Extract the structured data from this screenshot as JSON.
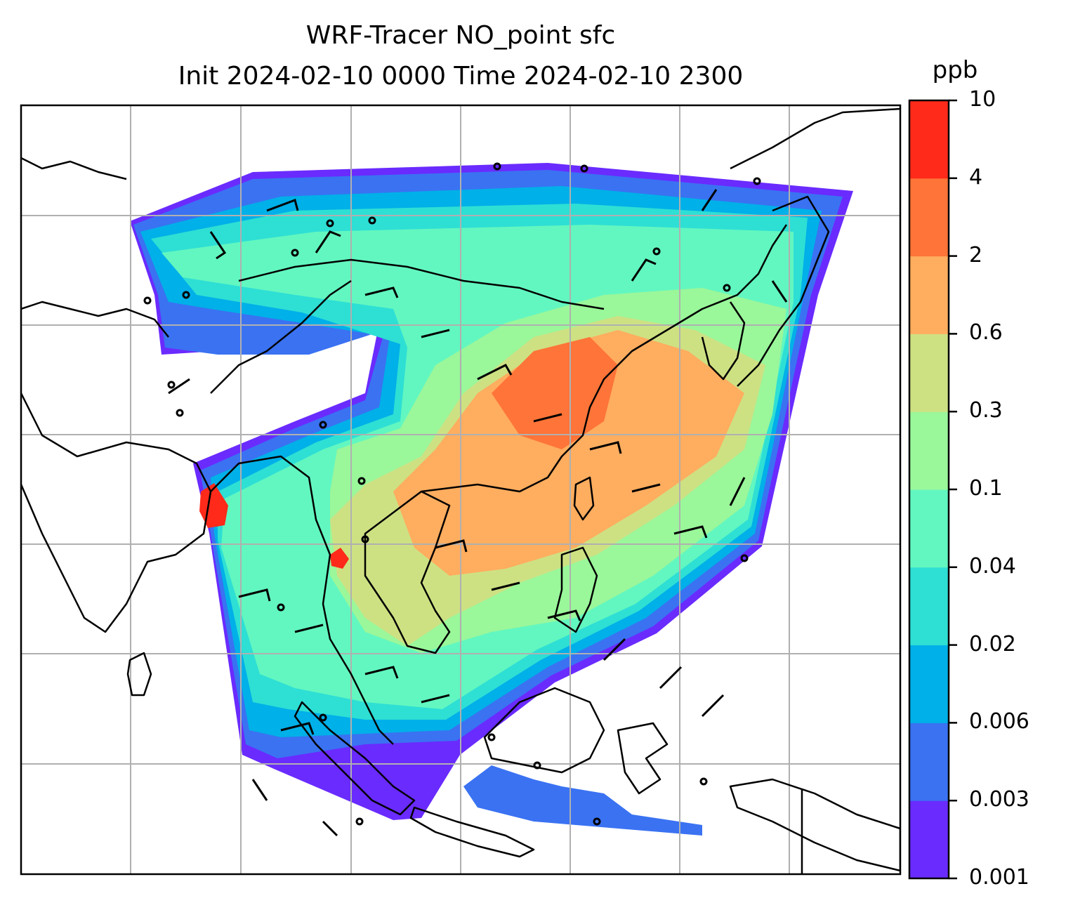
{
  "map": {
    "title_line1": "WRF-Tracer NO_point sfc",
    "title_line2": "Init 2024-02-10 0000 Time 2024-02-10 2300",
    "field": "NO_point tracer concentration (sfc)",
    "region": "South & East Asia / Maritime Continent",
    "gridlines": true,
    "wind_barbs": true
  },
  "colorbar": {
    "unit": "ppb",
    "tick_labels": [
      "0.001",
      "0.003",
      "0.006",
      "0.02",
      "0.04",
      "0.1",
      "0.3",
      "0.6",
      "2",
      "4",
      "10"
    ],
    "colors": [
      "#6a2bff",
      "#3a72f2",
      "#00b0e8",
      "#2edfd4",
      "#62f7c0",
      "#9af79a",
      "#cde183",
      "#ffad5f",
      "#ff7438",
      "#ff2a1a"
    ]
  }
}
